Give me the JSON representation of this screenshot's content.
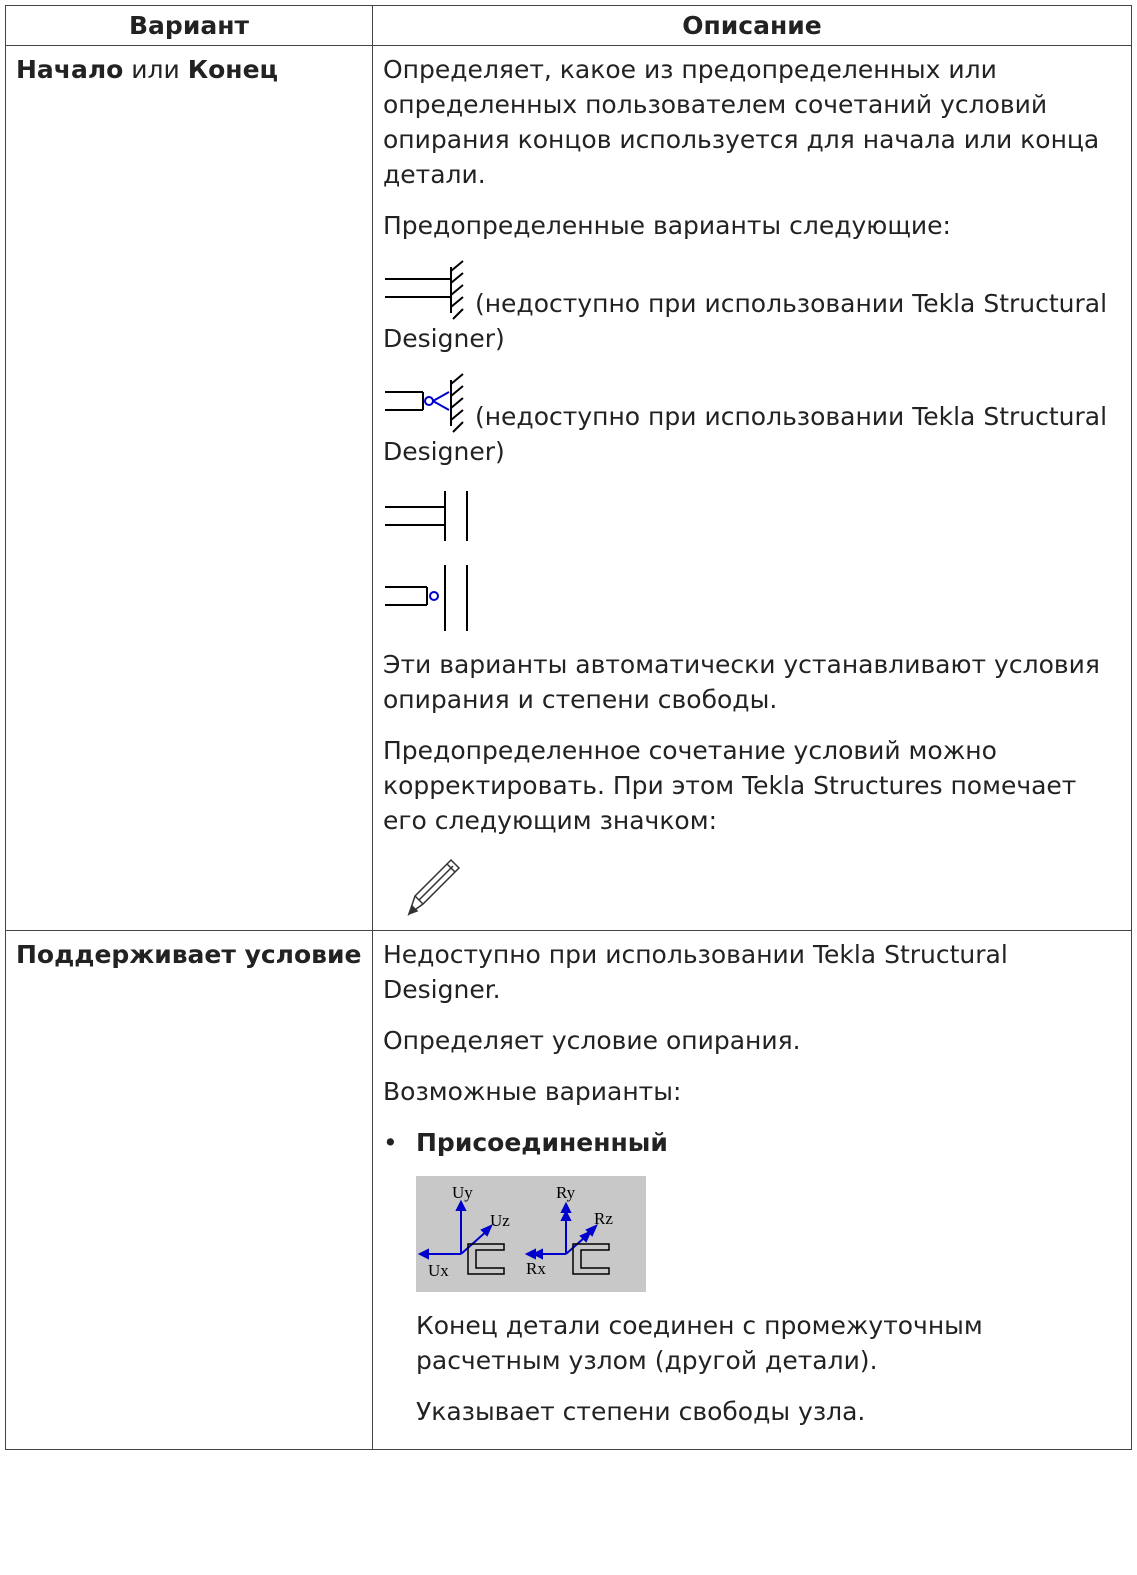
{
  "table": {
    "header": [
      "Вариант",
      "Описание"
    ],
    "rows": [
      {
        "option": {
          "first": "Начало",
          "joiner": " или ",
          "second": "Конец"
        },
        "description": {
          "p1": "Определяет, какое из предопределенных или определенных пользователем сочетаний условий опирания концов используется для начала или конца детали.",
          "p2": "Предопределенные варианты следующие:",
          "icon1_note": "(недоступно при использовании Tekla Structural Designer)",
          "icon2_note": "(недоступно при использовании Tekla Structural Designer)",
          "p3": "Эти варианты автоматически устанавливают условия опирания и степени свободы.",
          "p4": "Предопределенное сочетание условий можно корректировать. При этом Tekla Structures помечает его следующим значком:"
        }
      },
      {
        "option": {
          "first": "Поддерживает условие"
        },
        "description": {
          "p1": "Недоступно при использовании Tekla Structural Designer.",
          "p2": "Определяет условие опирания.",
          "p3": "Возможные варианты:",
          "bullet": "Присоединенный",
          "image_labels": [
            "Uy",
            "Uz",
            "Ux",
            "Ry",
            "Rz",
            "Rx"
          ],
          "p4": "Конец детали соединен с промежуточным расчетным узлом (другой детали).",
          "p5": "Указывает степени свободы узла."
        }
      }
    ]
  }
}
